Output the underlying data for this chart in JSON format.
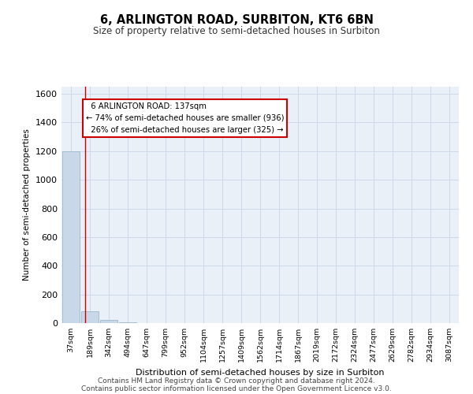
{
  "title": "6, ARLINGTON ROAD, SURBITON, KT6 6BN",
  "subtitle": "Size of property relative to semi-detached houses in Surbiton",
  "xlabel": "Distribution of semi-detached houses by size in Surbiton",
  "ylabel": "Number of semi-detached properties",
  "bar_labels": [
    "37sqm",
    "189sqm",
    "342sqm",
    "494sqm",
    "647sqm",
    "799sqm",
    "952sqm",
    "1104sqm",
    "1257sqm",
    "1409sqm",
    "1562sqm",
    "1714sqm",
    "1867sqm",
    "2019sqm",
    "2172sqm",
    "2324sqm",
    "2477sqm",
    "2629sqm",
    "2782sqm",
    "2934sqm",
    "3087sqm"
  ],
  "bar_values": [
    1200,
    85,
    20,
    4,
    2,
    1,
    0,
    0,
    0,
    0,
    0,
    0,
    0,
    0,
    0,
    0,
    0,
    0,
    0,
    0,
    0
  ],
  "bar_color": "#c8d8e8",
  "bar_edge_color": "#9ab8cc",
  "property_label": "6 ARLINGTON ROAD: 137sqm",
  "pct_smaller": 74,
  "pct_larger": 26,
  "count_smaller": 936,
  "count_larger": 325,
  "property_line_x": 0.74,
  "annotation_box_color": "#ffffff",
  "annotation_box_edge": "#cc0000",
  "property_line_color": "#cc0000",
  "ylim": [
    0,
    1650
  ],
  "yticks": [
    0,
    200,
    400,
    600,
    800,
    1000,
    1200,
    1400,
    1600
  ],
  "grid_color": "#cdd8e8",
  "background_color": "#eaf0f8",
  "footer1": "Contains HM Land Registry data © Crown copyright and database right 2024.",
  "footer2": "Contains public sector information licensed under the Open Government Licence v3.0."
}
